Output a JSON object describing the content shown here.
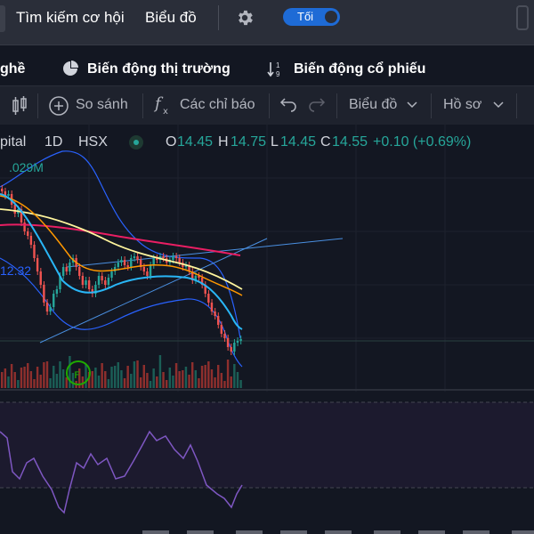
{
  "topnav": {
    "item1": "Tìm kiếm cơ hội",
    "item2": "Biểu đồ",
    "theme_toggle": "Tối"
  },
  "subnav": {
    "item0": "ghề",
    "item1": "Biến động thị trường",
    "item2": "Biến động cổ phiếu",
    "sort_icon_top": "1",
    "sort_icon_bottom": "9"
  },
  "toolbar": {
    "compare": "So sánh",
    "indicators": "Các chỉ báo",
    "chart_type": "Biểu đồ",
    "profile": "Hồ sơ"
  },
  "legend": {
    "symbol": "pital",
    "interval": "1D",
    "exchange": "HSX",
    "o_label": "O",
    "o_value": "14.45",
    "h_label": "H",
    "h_value": "14.75",
    "l_label": "L",
    "l_value": "14.45",
    "c_label": "C",
    "c_value": "14.55",
    "change": "+0.10 (+0.69%)"
  },
  "volume_label": ".029M",
  "ma_label": "12.32",
  "colors": {
    "up": "#26a69a",
    "down": "#ef5350",
    "accent": "#2962ff",
    "rsi": "#7e57c2"
  },
  "icons": {
    "settings": "gear-icon",
    "compare": "plus-circle-icon",
    "indicators": "fx-icon",
    "undo": "undo-icon",
    "redo": "redo-icon",
    "chevron": "chevron-down-icon",
    "candles": "candlestick-icon",
    "market": "pie-chart-icon",
    "stock": "sort-numeric-icon"
  }
}
